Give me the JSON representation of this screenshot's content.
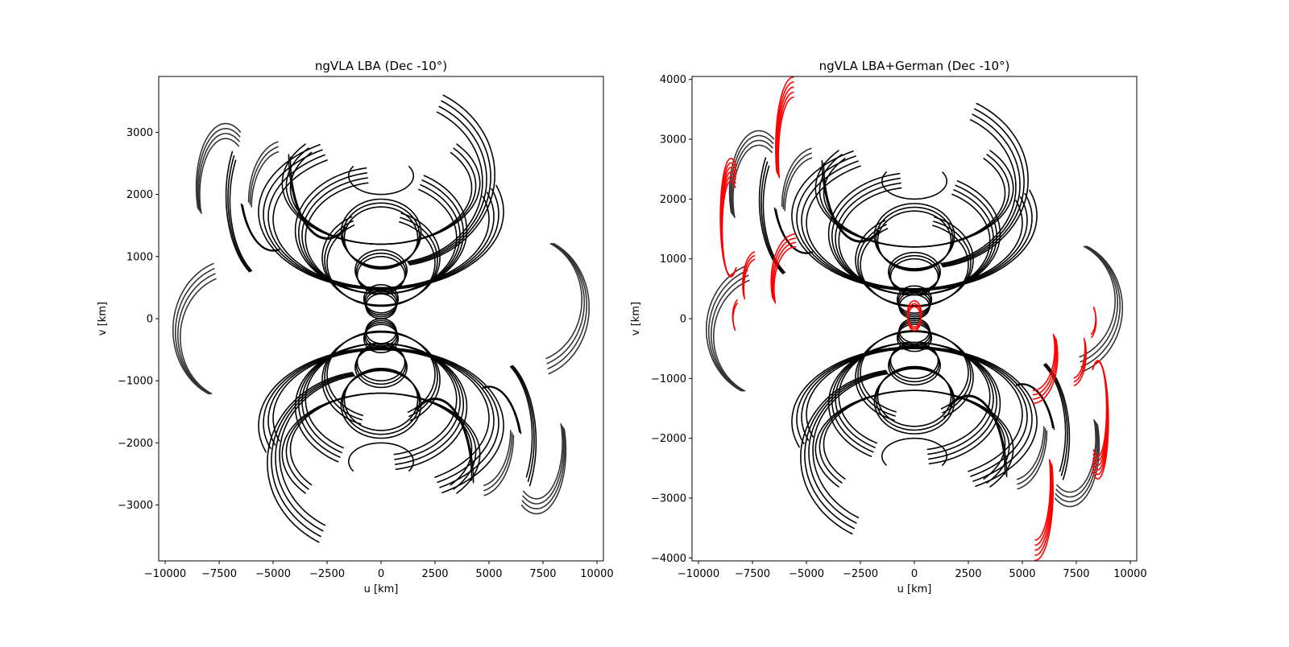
{
  "chart_data": [
    {
      "type": "scatter",
      "title": "ngVLA LBA (Dec -10°)",
      "xlabel": "u [km]",
      "ylabel": "v [km]",
      "xlim": [
        -10300,
        10300
      ],
      "ylim": [
        -3900,
        3900
      ],
      "xticks": [
        -10000,
        -7500,
        -5000,
        -2500,
        0,
        2500,
        5000,
        7500,
        10000
      ],
      "xtick_labels": [
        "−10000",
        "−7500",
        "−5000",
        "−2500",
        "0",
        "2500",
        "5000",
        "7500",
        "10000"
      ],
      "yticks": [
        -3000,
        -2000,
        -1000,
        0,
        1000,
        2000,
        3000
      ],
      "ytick_labels": [
        "−3000",
        "−2000",
        "−1000",
        "0",
        "1000",
        "2000",
        "3000"
      ],
      "grid": false,
      "tracks": [
        {
          "color": "#000000",
          "cu": 0,
          "cv": 2300,
          "a": 1500,
          "b": 300,
          "t0": 150,
          "t1": 390,
          "reps": 1,
          "mirror": true
        },
        {
          "color": "#000000",
          "cu": 0,
          "cv": 2100,
          "a": 4200,
          "b": 900,
          "t0": 140,
          "t1": 400,
          "reps": 3,
          "mirror": true
        },
        {
          "color": "#000000",
          "cu": 0,
          "cv": 1600,
          "a": 5000,
          "b": 1100,
          "t0": 120,
          "t1": 380,
          "reps": 4,
          "mirror": true
        },
        {
          "color": "#000000",
          "cu": 0,
          "cv": 1300,
          "a": 3500,
          "b": 900,
          "t0": 100,
          "t1": 420,
          "reps": 4,
          "mirror": true
        },
        {
          "color": "#000000",
          "cu": 0,
          "cv": 900,
          "a": 2500,
          "b": 700,
          "t0": 120,
          "t1": 430,
          "reps": 3,
          "mirror": true
        },
        {
          "color": "#000000",
          "cu": 0,
          "cv": 1300,
          "a": 1700,
          "b": 500,
          "t0": 0,
          "t1": 360,
          "reps": 3,
          "mirror": true
        },
        {
          "color": "#000000",
          "cu": 0,
          "cv": 700,
          "a": 1100,
          "b": 300,
          "t0": 0,
          "t1": 360,
          "reps": 3,
          "mirror": true
        },
        {
          "color": "#000000",
          "cu": 0,
          "cv": 200,
          "a": 700,
          "b": 200,
          "t0": 0,
          "t1": 360,
          "reps": 4,
          "mirror": true
        },
        {
          "color": "#000000",
          "cu": 500,
          "cv": 2200,
          "a": 4200,
          "b": 1300,
          "t0": 280,
          "t1": 420,
          "reps": 4,
          "mirror": true
        },
        {
          "color": "#000000",
          "cu": -2500,
          "cv": 2600,
          "a": 1700,
          "b": 1300,
          "t0": 180,
          "t1": 300,
          "reps": 2,
          "mirror": true
        },
        {
          "color": "#000000",
          "cu": -5000,
          "cv": 1900,
          "a": 2000,
          "b": 1300,
          "t0": 150,
          "t1": 240,
          "reps": 3,
          "mirror": true
        },
        {
          "color": "#000000",
          "cu": -5000,
          "cv": 2200,
          "a": 1500,
          "b": 1100,
          "t0": 200,
          "t1": 280,
          "reps": 2,
          "mirror": true
        },
        {
          "color": "#333333",
          "cu": -7200,
          "cv": 2000,
          "a": 1200,
          "b": 900,
          "t0": 60,
          "t1": 200,
          "reps": 4,
          "mirror": true
        },
        {
          "color": "#333333",
          "cu": -6800,
          "cv": -300,
          "a": 2500,
          "b": 1000,
          "t0": 110,
          "t1": 245,
          "reps": 4,
          "mirror": true
        },
        {
          "color": "#333333",
          "cu": -4500,
          "cv": 1800,
          "a": 1500,
          "b": 900,
          "t0": 100,
          "t1": 180,
          "reps": 3,
          "mirror": true
        }
      ]
    },
    {
      "type": "scatter",
      "title": "ngVLA LBA+German (Dec -10°)",
      "xlabel": "u [km]",
      "ylabel": "v [km]",
      "xlim": [
        -10300,
        10300
      ],
      "ylim": [
        -4050,
        4050
      ],
      "xticks": [
        -10000,
        -7500,
        -5000,
        -2500,
        0,
        2500,
        5000,
        7500,
        10000
      ],
      "xtick_labels": [
        "−10000",
        "−7500",
        "−5000",
        "−2500",
        "0",
        "2500",
        "5000",
        "7500",
        "10000"
      ],
      "yticks": [
        -4000,
        -3000,
        -2000,
        -1000,
        0,
        1000,
        2000,
        3000,
        4000
      ],
      "ytick_labels": [
        "−4000",
        "−3000",
        "−2000",
        "−1000",
        "0",
        "1000",
        "2000",
        "3000",
        "4000"
      ],
      "grid": false,
      "tracks": [
        {
          "color": "#000000",
          "cu": 0,
          "cv": 2300,
          "a": 1500,
          "b": 300,
          "t0": 150,
          "t1": 390,
          "reps": 1,
          "mirror": true
        },
        {
          "color": "#000000",
          "cu": 0,
          "cv": 2100,
          "a": 4200,
          "b": 900,
          "t0": 140,
          "t1": 400,
          "reps": 3,
          "mirror": true
        },
        {
          "color": "#000000",
          "cu": 0,
          "cv": 1600,
          "a": 5000,
          "b": 1100,
          "t0": 120,
          "t1": 380,
          "reps": 4,
          "mirror": true
        },
        {
          "color": "#000000",
          "cu": 0,
          "cv": 1300,
          "a": 3500,
          "b": 900,
          "t0": 100,
          "t1": 420,
          "reps": 4,
          "mirror": true
        },
        {
          "color": "#000000",
          "cu": 0,
          "cv": 900,
          "a": 2500,
          "b": 700,
          "t0": 120,
          "t1": 430,
          "reps": 3,
          "mirror": true
        },
        {
          "color": "#000000",
          "cu": 0,
          "cv": 1300,
          "a": 1700,
          "b": 500,
          "t0": 0,
          "t1": 360,
          "reps": 3,
          "mirror": true
        },
        {
          "color": "#000000",
          "cu": 0,
          "cv": 700,
          "a": 1100,
          "b": 300,
          "t0": 0,
          "t1": 360,
          "reps": 3,
          "mirror": true
        },
        {
          "color": "#000000",
          "cu": 0,
          "cv": 200,
          "a": 700,
          "b": 200,
          "t0": 0,
          "t1": 360,
          "reps": 4,
          "mirror": true
        },
        {
          "color": "#000000",
          "cu": 500,
          "cv": 2200,
          "a": 4200,
          "b": 1300,
          "t0": 280,
          "t1": 420,
          "reps": 4,
          "mirror": true
        },
        {
          "color": "#000000",
          "cu": -2500,
          "cv": 2600,
          "a": 1700,
          "b": 1300,
          "t0": 180,
          "t1": 300,
          "reps": 2,
          "mirror": true
        },
        {
          "color": "#000000",
          "cu": -5000,
          "cv": 1900,
          "a": 2000,
          "b": 1300,
          "t0": 150,
          "t1": 240,
          "reps": 3,
          "mirror": true
        },
        {
          "color": "#000000",
          "cu": -5000,
          "cv": 2200,
          "a": 1500,
          "b": 1100,
          "t0": 200,
          "t1": 280,
          "reps": 2,
          "mirror": true
        },
        {
          "color": "#333333",
          "cu": -7200,
          "cv": 2000,
          "a": 1200,
          "b": 900,
          "t0": 60,
          "t1": 200,
          "reps": 4,
          "mirror": true
        },
        {
          "color": "#333333",
          "cu": -6800,
          "cv": -300,
          "a": 2500,
          "b": 1000,
          "t0": 110,
          "t1": 245,
          "reps": 4,
          "mirror": true
        },
        {
          "color": "#333333",
          "cu": -4500,
          "cv": 1800,
          "a": 1500,
          "b": 900,
          "t0": 100,
          "t1": 180,
          "reps": 3,
          "mirror": true
        },
        {
          "color": "#ff0000",
          "cu": -5600,
          "cv": 2700,
          "a": 700,
          "b": 1000,
          "t0": 90,
          "t1": 200,
          "reps": 5,
          "mirror": true
        },
        {
          "color": "#ff0000",
          "cu": -8500,
          "cv": 1500,
          "a": 400,
          "b": 800,
          "t0": 60,
          "t1": 300,
          "reps": 6,
          "mirror": true
        },
        {
          "color": "#ff0000",
          "cu": -5500,
          "cv": 500,
          "a": 1000,
          "b": 700,
          "t0": 90,
          "t1": 200,
          "reps": 4,
          "mirror": true
        },
        {
          "color": "#ff0000",
          "cu": -7300,
          "cv": 500,
          "a": 600,
          "b": 500,
          "t0": 100,
          "t1": 200,
          "reps": 3,
          "mirror": true
        },
        {
          "color": "#ff0000",
          "cu": -8000,
          "cv": 0,
          "a": 400,
          "b": 300,
          "t0": 120,
          "t1": 220,
          "reps": 2,
          "mirror": true
        },
        {
          "color": "#ff0000",
          "cu": 0,
          "cv": 0,
          "a": 300,
          "b": 200,
          "t0": 0,
          "t1": 360,
          "reps": 3,
          "mirror": false
        }
      ]
    }
  ]
}
